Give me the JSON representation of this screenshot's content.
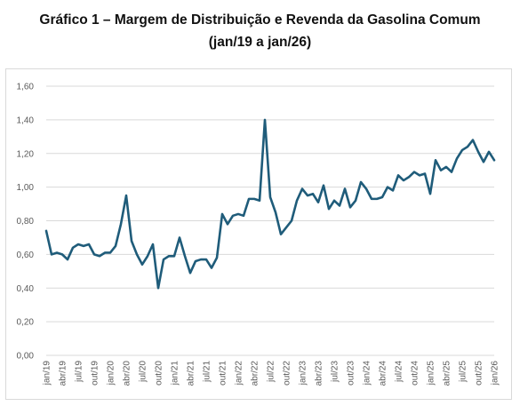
{
  "title": {
    "line1": "Gráfico 1 – Margem de Distribuição e Revenda da Gasolina Comum",
    "line2": "(jan/19 a jan/26)"
  },
  "chart_data": {
    "type": "line",
    "title": "Gráfico 1 – Margem de Distribuição e Revenda da Gasolina Comum (jan/19 a jan/26)",
    "xlabel": "",
    "ylabel": "",
    "ylim": [
      0,
      1.6
    ],
    "ytick_step": 0.2,
    "ytick_labels": [
      "0,00",
      "0,20",
      "0,40",
      "0,60",
      "0,80",
      "1,00",
      "1,20",
      "1,40",
      "1,60"
    ],
    "grid": "horizontal",
    "legend": "none",
    "line_color": "#1f5c7a",
    "grid_color": "#d9d9d9",
    "x_start": "jan/19",
    "x_end": "jan/26",
    "xtick_labels": [
      "jan/19",
      "abr/19",
      "jul/19",
      "out/19",
      "jan/20",
      "abr/20",
      "jul/20",
      "out/20",
      "jan/21",
      "abr/21",
      "jul/21",
      "out/21",
      "jan/22",
      "abr/22",
      "jul/22",
      "out/22",
      "jan/23",
      "abr/23",
      "jul/23",
      "out/23",
      "jan/24",
      "abr/24",
      "jul/24",
      "out/24",
      "jan/25",
      "abr/25",
      "jul/25",
      "out/25",
      "jan/26"
    ],
    "series": [
      {
        "values": [
          0.74,
          0.6,
          0.61,
          0.6,
          0.57,
          0.64,
          0.66,
          0.65,
          0.66,
          0.6,
          0.59,
          0.61,
          0.61,
          0.65,
          0.78,
          0.95,
          0.68,
          0.6,
          0.54,
          0.59,
          0.66,
          0.4,
          0.57,
          0.59,
          0.59,
          0.7,
          0.59,
          0.49,
          0.56,
          0.57,
          0.57,
          0.52,
          0.58,
          0.84,
          0.78,
          0.83,
          0.84,
          0.83,
          0.93,
          0.93,
          0.92,
          1.4,
          0.94,
          0.85,
          0.72,
          0.76,
          0.8,
          0.92,
          0.99,
          0.95,
          0.96,
          0.91,
          1.01,
          0.87,
          0.92,
          0.89,
          0.99,
          0.88,
          0.92,
          1.03,
          0.99,
          0.93,
          0.93,
          0.94,
          1.0,
          0.98,
          1.07,
          1.04,
          1.06,
          1.09,
          1.07,
          1.08,
          0.96,
          1.16,
          1.1,
          1.12,
          1.09,
          1.17,
          1.22,
          1.24,
          1.28,
          1.21,
          1.15,
          1.21,
          1.16
        ]
      }
    ]
  }
}
